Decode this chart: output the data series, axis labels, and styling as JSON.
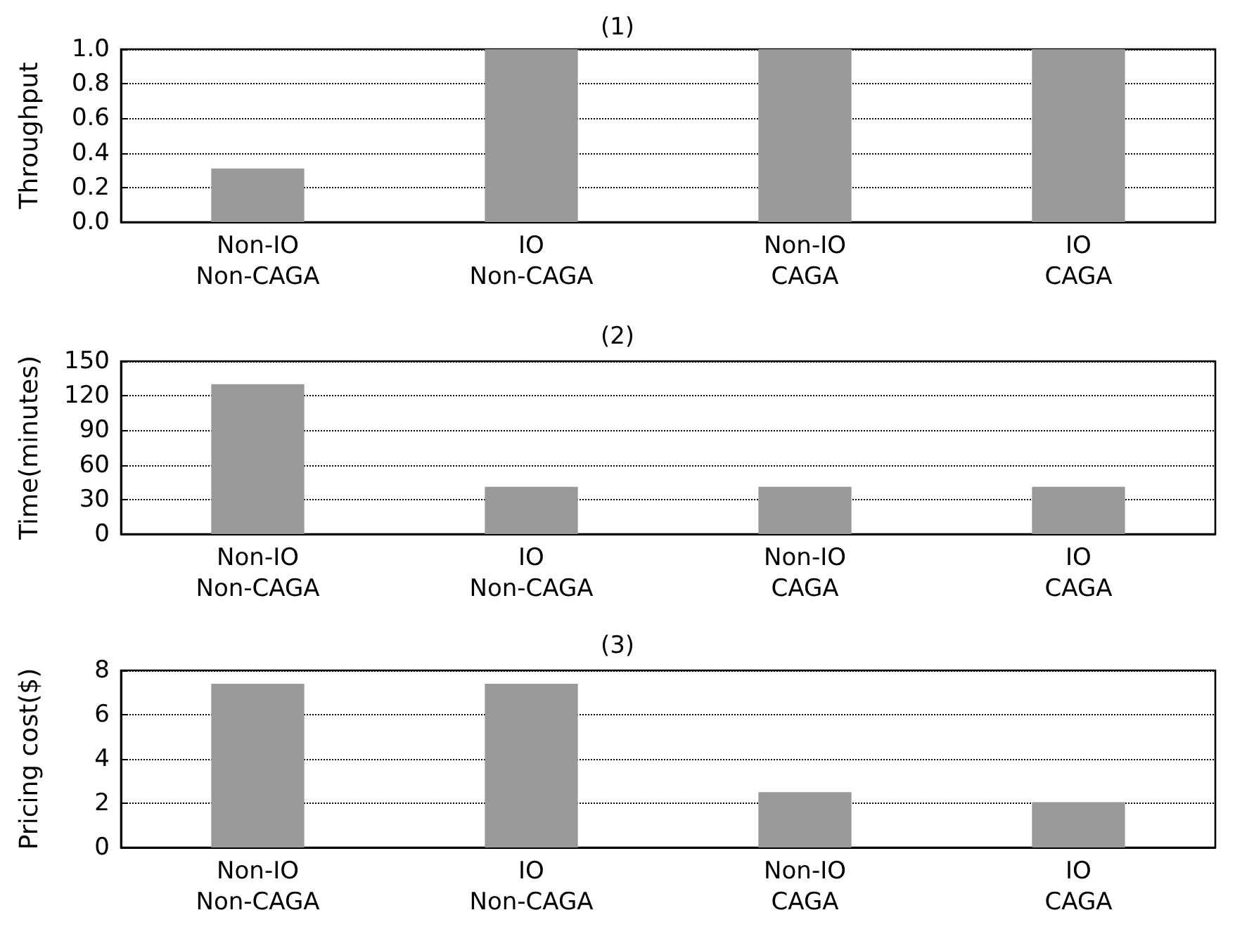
{
  "chart_data": [
    {
      "type": "bar",
      "title": "(1)",
      "ylabel": "Throughput",
      "categories": [
        "Non-IO\nNon-CAGA",
        "IO\nNon-CAGA",
        "Non-IO\nCAGA",
        "IO\nCAGA"
      ],
      "values": [
        0.31,
        1.0,
        1.0,
        1.0
      ],
      "color": "#999999",
      "ylim": [
        0,
        1
      ],
      "yticks": [
        {
          "value": 0,
          "label": "0.0"
        },
        {
          "value": 0.2,
          "label": "0.2"
        },
        {
          "value": 0.4,
          "label": "0.4"
        },
        {
          "value": 0.6,
          "label": "0.6"
        },
        {
          "value": 0.8,
          "label": "0.8"
        },
        {
          "value": 1,
          "label": "1.0"
        }
      ],
      "grid": "y"
    },
    {
      "type": "bar",
      "title": "(2)",
      "ylabel": "Time(minutes)",
      "categories": [
        "Non-IO\nNon-CAGA",
        "IO\nNon-CAGA",
        "Non-IO\nCAGA",
        "IO\nCAGA"
      ],
      "values": [
        130,
        41,
        41,
        41
      ],
      "color": "#999999",
      "ylim": [
        0,
        150
      ],
      "yticks": [
        0,
        30,
        60,
        90,
        120,
        150
      ],
      "grid": "y"
    },
    {
      "type": "bar",
      "title": "(3)",
      "ylabel": "Pricing cost($)",
      "categories": [
        "Non-IO\nNon-CAGA",
        "IO\nNon-CAGA",
        "Non-IO\nCAGA",
        "IO\nCAGA"
      ],
      "values": [
        7.4,
        7.4,
        2.5,
        2.05
      ],
      "color": "#999999",
      "ylim": [
        0,
        8
      ],
      "yticks": [
        0,
        2,
        4,
        6,
        8
      ],
      "grid": "y"
    }
  ]
}
